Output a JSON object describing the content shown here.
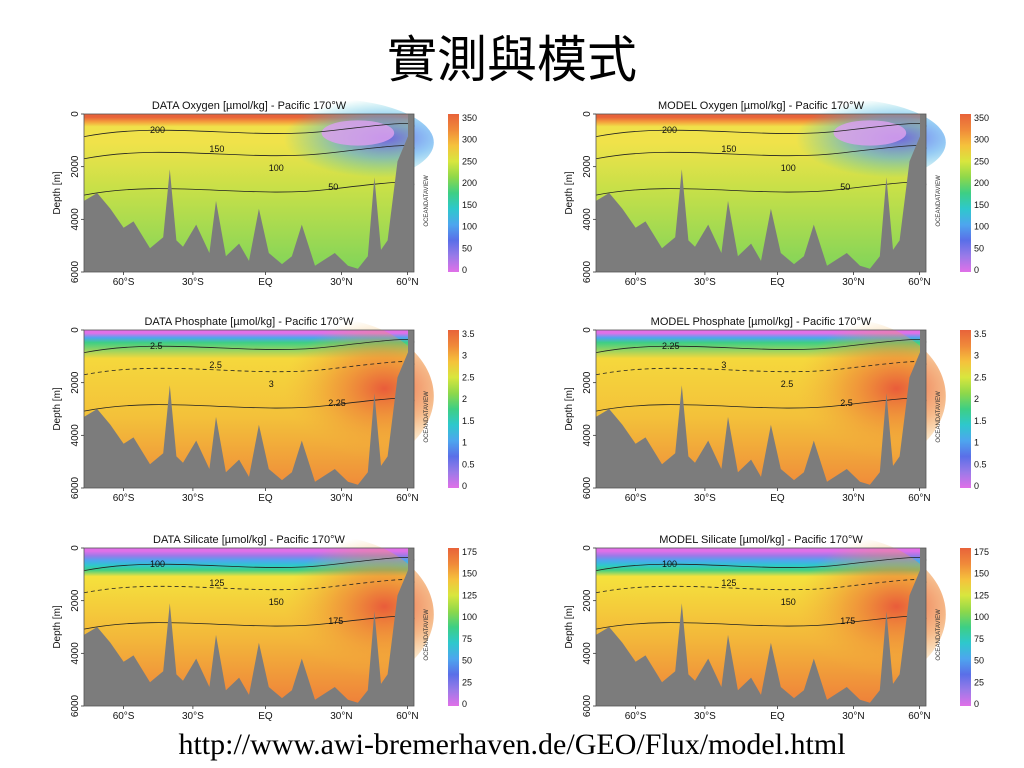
{
  "slide": {
    "title": "實測與模式",
    "url": "http://www.awi-bremerhaven.de/GEO/Flux/model.html"
  },
  "chart_data": [
    {
      "type": "heatmap",
      "title": "DATA Oxygen [µmol/kg] - Pacific 170°W",
      "ylabel": "Depth [m]",
      "y_ticks": [
        "0",
        "2000",
        "4000",
        "6000"
      ],
      "x_ticks": [
        "60°S",
        "30°S",
        "EQ",
        "30°N",
        "60°N"
      ],
      "colorbar": [
        "350",
        "300",
        "250",
        "200",
        "150",
        "100",
        "50",
        "0"
      ],
      "contour_labels": [
        "200",
        "150",
        "100",
        "50"
      ],
      "watermark": "OCEANDATAVIEW"
    },
    {
      "type": "heatmap",
      "title": "MODEL Oxygen [µmol/kg] - Pacific 170°W",
      "ylabel": "Depth [m]",
      "y_ticks": [
        "0",
        "2000",
        "4000",
        "6000"
      ],
      "x_ticks": [
        "60°S",
        "30°S",
        "EQ",
        "30°N",
        "60°N"
      ],
      "colorbar": [
        "350",
        "300",
        "250",
        "200",
        "150",
        "100",
        "50",
        "0"
      ],
      "contour_labels": [
        "200",
        "150",
        "100",
        "50"
      ],
      "watermark": "OCEANDATAVIEW"
    },
    {
      "type": "heatmap",
      "title": "DATA Phosphate [µmol/kg] - Pacific 170°W",
      "ylabel": "Depth [m]",
      "y_ticks": [
        "0",
        "2000",
        "4000",
        "6000"
      ],
      "x_ticks": [
        "60°S",
        "30°S",
        "EQ",
        "30°N",
        "60°N"
      ],
      "colorbar": [
        "3.5",
        "3",
        "2.5",
        "2",
        "1.5",
        "1",
        "0.5",
        "0"
      ],
      "contour_labels": [
        "2.5",
        "2.5",
        "3",
        "2.25"
      ],
      "watermark": "OCEANDATAVIEW"
    },
    {
      "type": "heatmap",
      "title": "MODEL Phosphate [µmol/kg] - Pacific 170°W",
      "ylabel": "Depth [m]",
      "y_ticks": [
        "0",
        "2000",
        "4000",
        "6000"
      ],
      "x_ticks": [
        "60°S",
        "30°S",
        "EQ",
        "30°N",
        "60°N"
      ],
      "colorbar": [
        "3.5",
        "3",
        "2.5",
        "2",
        "1.5",
        "1",
        "0.5",
        "0"
      ],
      "contour_labels": [
        "2.25",
        "3",
        "2.5",
        "2.5"
      ],
      "watermark": "OCEANDATAVIEW"
    },
    {
      "type": "heatmap",
      "title": "DATA Silicate [µmol/kg] - Pacific 170°W",
      "ylabel": "Depth [m]",
      "y_ticks": [
        "0",
        "2000",
        "4000",
        "6000"
      ],
      "x_ticks": [
        "60°S",
        "30°S",
        "EQ",
        "30°N",
        "60°N"
      ],
      "colorbar": [
        "175",
        "150",
        "125",
        "100",
        "75",
        "50",
        "25",
        "0"
      ],
      "contour_labels": [
        "100",
        "125",
        "150",
        "175"
      ],
      "watermark": "OCEANDATAVIEW"
    },
    {
      "type": "heatmap",
      "title": "MODEL Silicate [µmol/kg] - Pacific 170°W",
      "ylabel": "Depth [m]",
      "y_ticks": [
        "0",
        "2000",
        "4000",
        "6000"
      ],
      "x_ticks": [
        "60°S",
        "30°S",
        "EQ",
        "30°N",
        "60°N"
      ],
      "colorbar": [
        "175",
        "150",
        "125",
        "100",
        "75",
        "50",
        "25",
        "0"
      ],
      "contour_labels": [
        "100",
        "125",
        "150",
        "175"
      ],
      "watermark": "OCEANDATAVIEW"
    }
  ]
}
